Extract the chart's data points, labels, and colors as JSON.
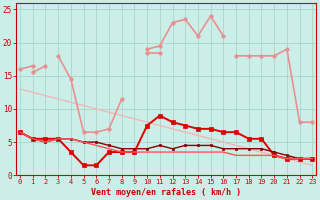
{
  "x": [
    0,
    1,
    2,
    3,
    4,
    5,
    6,
    7,
    8,
    9,
    10,
    11,
    12,
    13,
    14,
    15,
    16,
    17,
    18,
    19,
    20,
    21,
    22,
    23
  ],
  "series": [
    {
      "values": [
        13.0,
        12.5,
        12.0,
        11.5,
        11.0,
        10.5,
        10.0,
        9.5,
        9.0,
        8.5,
        8.0,
        7.5,
        7.0,
        6.5,
        6.0,
        5.5,
        5.0,
        4.5,
        4.0,
        3.5,
        3.0,
        2.5,
        2.0,
        1.5
      ],
      "color": "#f0b8b8",
      "linewidth": 1.0,
      "linestyle": "-",
      "marker": null,
      "markersize": 0
    },
    {
      "values": [
        null,
        null,
        null,
        null,
        null,
        null,
        null,
        null,
        null,
        null,
        19.0,
        19.5,
        23.0,
        23.5,
        21.0,
        24.0,
        21.0,
        null,
        null,
        null,
        null,
        null,
        null,
        null
      ],
      "color": "#e89090",
      "linewidth": 1.2,
      "linestyle": "-",
      "marker": "o",
      "markersize": 2.5
    },
    {
      "values": [
        16.0,
        16.5,
        null,
        null,
        null,
        null,
        null,
        null,
        null,
        null,
        18.5,
        18.5,
        null,
        null,
        null,
        null,
        null,
        18.0,
        18.0,
        18.0,
        18.0,
        19.0,
        8.0,
        8.0
      ],
      "color": "#e89090",
      "linewidth": 1.2,
      "linestyle": "-",
      "marker": "o",
      "markersize": 2.5
    },
    {
      "values": [
        null,
        null,
        null,
        18.0,
        14.5,
        6.5,
        6.5,
        7.0,
        11.5,
        null,
        null,
        null,
        null,
        null,
        null,
        null,
        null,
        null,
        null,
        null,
        null,
        null,
        null,
        null
      ],
      "color": "#e89090",
      "linewidth": 1.2,
      "linestyle": "-",
      "marker": "o",
      "markersize": 2.5
    },
    {
      "values": [
        null,
        15.5,
        16.5,
        null,
        null,
        null,
        null,
        null,
        null,
        null,
        null,
        null,
        null,
        null,
        null,
        null,
        null,
        null,
        null,
        null,
        null,
        null,
        null,
        null
      ],
      "color": "#e89090",
      "linewidth": 1.2,
      "linestyle": "-",
      "marker": "o",
      "markersize": 2.5
    },
    {
      "values": [
        6.5,
        5.5,
        5.5,
        5.5,
        3.5,
        1.5,
        1.5,
        3.5,
        3.5,
        3.5,
        7.5,
        9.0,
        8.0,
        7.5,
        7.0,
        7.0,
        6.5,
        6.5,
        5.5,
        5.5,
        3.0,
        2.5,
        2.5,
        2.5
      ],
      "color": "#dd0000",
      "linewidth": 1.4,
      "linestyle": "-",
      "marker": "s",
      "markersize": 2.5
    },
    {
      "values": [
        6.5,
        5.5,
        5.0,
        5.5,
        5.5,
        5.0,
        5.0,
        4.5,
        4.0,
        4.0,
        4.0,
        4.5,
        4.0,
        4.5,
        4.5,
        4.5,
        4.0,
        4.0,
        4.0,
        4.0,
        3.5,
        3.0,
        2.5,
        2.5
      ],
      "color": "#880000",
      "linewidth": 1.0,
      "linestyle": "-",
      "marker": "s",
      "markersize": 2.0
    },
    {
      "values": [
        6.5,
        5.5,
        5.0,
        5.5,
        5.5,
        5.0,
        4.5,
        4.0,
        3.5,
        3.5,
        3.5,
        3.5,
        3.5,
        3.5,
        3.5,
        3.5,
        3.5,
        3.0,
        3.0,
        3.0,
        3.0,
        2.5,
        2.5,
        2.5
      ],
      "color": "#ff5555",
      "linewidth": 1.0,
      "linestyle": "-",
      "marker": null,
      "markersize": 0
    }
  ],
  "xlim": [
    -0.3,
    23.3
  ],
  "ylim": [
    0,
    26
  ],
  "yticks": [
    0,
    5,
    10,
    15,
    20,
    25
  ],
  "xticks": [
    0,
    1,
    2,
    3,
    4,
    5,
    6,
    7,
    8,
    9,
    10,
    11,
    12,
    13,
    14,
    15,
    16,
    17,
    18,
    19,
    20,
    21,
    22,
    23
  ],
  "xlabel": "Vent moyen/en rafales ( km/h )",
  "bg_color": "#cceee8",
  "grid_color": "#aad4cc",
  "tick_color": "#cc0000",
  "label_color": "#cc0000"
}
